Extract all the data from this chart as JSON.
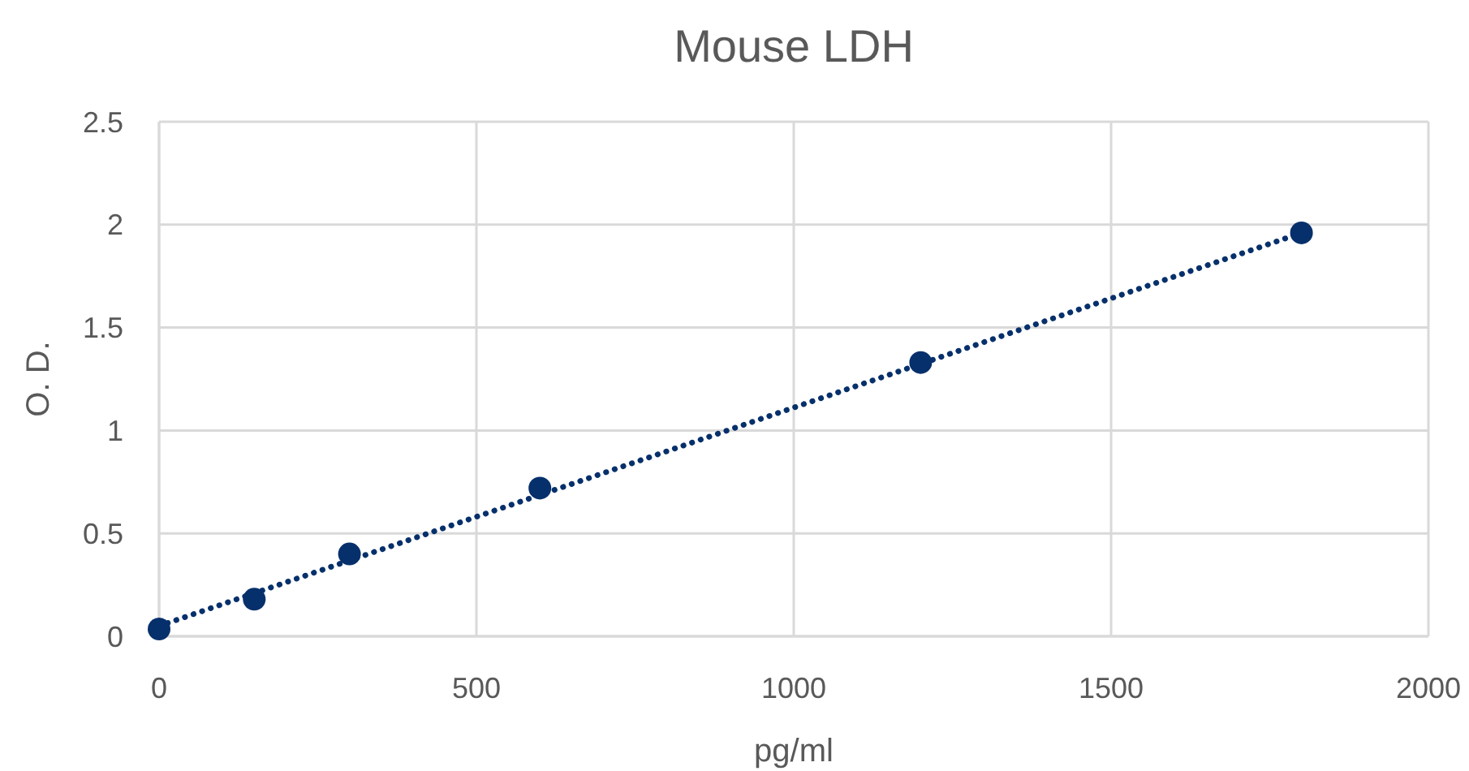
{
  "chart_data": {
    "type": "scatter",
    "title": "Mouse LDH",
    "xlabel": "pg/ml",
    "ylabel": "O. D.",
    "x": [
      0,
      150,
      300,
      600,
      1200,
      1800
    ],
    "series": [
      {
        "color": "#06306b",
        "marker": "circle",
        "values": [
          0.035,
          0.18,
          0.4,
          0.72,
          1.33,
          1.96
        ]
      },
      {
        "type": "line",
        "color": "#06306b",
        "marker": "none",
        "line_style": "dotted",
        "x": [
          0,
          1800
        ],
        "values": [
          0.05,
          1.96
        ]
      }
    ],
    "xlim": [
      0,
      2000
    ],
    "xticks": [
      0,
      500,
      1000,
      1500,
      2000
    ],
    "ylim": [
      0,
      2.5
    ],
    "yticks": [
      0,
      0.5,
      1,
      1.5,
      2,
      2.5
    ],
    "grid": true
  }
}
